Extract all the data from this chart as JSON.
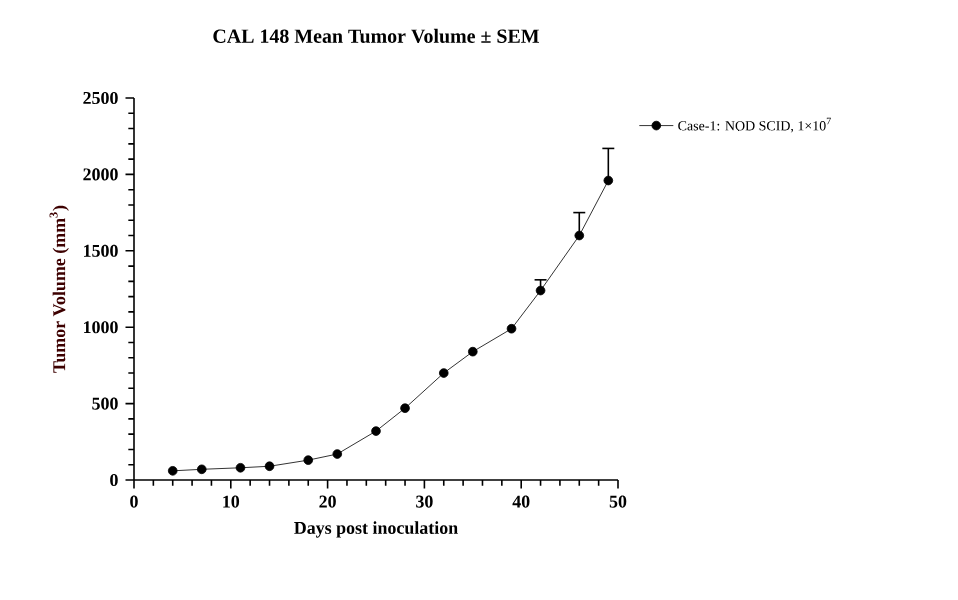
{
  "chart_data": {
    "type": "line",
    "title": "CAL 148 Mean Tumor Volume ± SEM",
    "xlabel": "Days post inoculation",
    "ylabel": "Tumor Volume (mm$^{3}$)",
    "x": [
      4,
      7,
      11,
      14,
      18,
      21,
      25,
      28,
      32,
      35,
      39,
      42,
      46,
      49
    ],
    "series": [
      {
        "name": "Case-1: NOD SCID, 1×10$^{7}$",
        "color": "#000000",
        "values": [
          60,
          70,
          80,
          90,
          130,
          170,
          320,
          470,
          700,
          840,
          990,
          1240,
          1600,
          1960
        ],
        "errors": [
          null,
          null,
          null,
          null,
          null,
          null,
          null,
          null,
          null,
          null,
          null,
          [
            1240,
            1310
          ],
          [
            1600,
            1750
          ],
          [
            1960,
            2170
          ]
        ]
      }
    ],
    "xlim": [
      0,
      50
    ],
    "xticks": [
      0,
      10,
      20,
      30,
      40,
      50
    ],
    "ylim": [
      0,
      2500
    ],
    "yticks": [
      0,
      500,
      1000,
      1500,
      2000,
      2500
    ],
    "marker": "circle",
    "line_style": "solid",
    "legend": "top right",
    "grid": false
  }
}
